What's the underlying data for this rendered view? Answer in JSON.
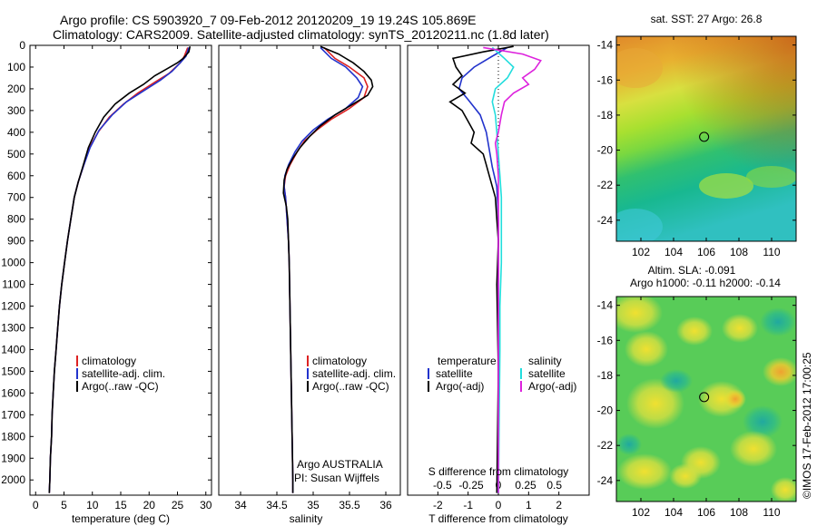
{
  "header": {
    "title_line1": "Argo profile: CS 5903920_7 09-Feb-2012 20120209_19 19.24S 105.869E",
    "title_line2": "Climatology: CARS2009. Satellite-adjusted climatology: synTS_20120211.nc (1.8d later)"
  },
  "depth_axis": {
    "ylim": [
      0,
      2070
    ],
    "ticks": [
      0,
      100,
      200,
      300,
      400,
      500,
      600,
      700,
      800,
      900,
      1000,
      1100,
      1200,
      1300,
      1400,
      1500,
      1600,
      1700,
      1800,
      1900,
      2000
    ]
  },
  "colors": {
    "climatology": "#dd2222",
    "satellite": "#2233cc",
    "argo": "#000000",
    "sal_satellite": "#22dddd",
    "sal_argo": "#dd22dd"
  },
  "chart_data": [
    {
      "type": "line",
      "name": "temperature-profile",
      "xlabel": "temperature (deg C)",
      "xlim": [
        -1,
        31
      ],
      "xticks": [
        0,
        5,
        10,
        15,
        20,
        25,
        30
      ],
      "legend": [
        "climatology",
        "satellite-adj. clim.",
        "Argo(..raw -QC)"
      ],
      "series": [
        {
          "name": "climatology",
          "points": [
            [
              26.8,
              10
            ],
            [
              26.2,
              50
            ],
            [
              25.5,
              80
            ],
            [
              23.5,
              130
            ],
            [
              21,
              170
            ],
            [
              18,
              220
            ],
            [
              15.5,
              270
            ],
            [
              13,
              330
            ],
            [
              11,
              400
            ],
            [
              9.5,
              470
            ],
            [
              8.5,
              550
            ],
            [
              7.5,
              630
            ],
            [
              6.8,
              700
            ],
            [
              6.2,
              800
            ],
            [
              5.6,
              900
            ],
            [
              5.1,
              1000
            ],
            [
              4.6,
              1100
            ],
            [
              4.2,
              1200
            ],
            [
              3.9,
              1300
            ],
            [
              3.6,
              1400
            ],
            [
              3.3,
              1500
            ],
            [
              3.1,
              1600
            ],
            [
              2.9,
              1700
            ],
            [
              2.8,
              1800
            ],
            [
              2.6,
              1900
            ],
            [
              2.5,
              2000
            ],
            [
              2.4,
              2060
            ]
          ]
        },
        {
          "name": "satellite-adj. clim.",
          "points": [
            [
              27,
              10
            ],
            [
              26.5,
              50
            ],
            [
              25.5,
              80
            ],
            [
              24,
              120
            ],
            [
              22,
              160
            ],
            [
              19,
              210
            ],
            [
              16,
              260
            ],
            [
              13.5,
              320
            ],
            [
              11.2,
              390
            ],
            [
              9.6,
              470
            ],
            [
              8.5,
              550
            ],
            [
              7.5,
              630
            ],
            [
              6.8,
              700
            ],
            [
              6.2,
              800
            ],
            [
              5.6,
              900
            ],
            [
              5.1,
              1000
            ],
            [
              4.6,
              1100
            ],
            [
              4.2,
              1200
            ],
            [
              3.9,
              1300
            ],
            [
              3.6,
              1400
            ],
            [
              3.3,
              1500
            ],
            [
              3.1,
              1600
            ],
            [
              2.9,
              1700
            ],
            [
              2.8,
              1800
            ],
            [
              2.6,
              1900
            ],
            [
              2.5,
              2000
            ],
            [
              2.4,
              2060
            ]
          ]
        },
        {
          "name": "Argo(..raw -QC)",
          "points": [
            [
              27.2,
              5
            ],
            [
              27,
              30
            ],
            [
              26,
              60
            ],
            [
              25,
              80
            ],
            [
              23,
              110
            ],
            [
              21,
              140
            ],
            [
              19,
              180
            ],
            [
              16.5,
              220
            ],
            [
              14,
              270
            ],
            [
              12,
              330
            ],
            [
              10.5,
              400
            ],
            [
              9.3,
              470
            ],
            [
              8.4,
              550
            ],
            [
              7.5,
              630
            ],
            [
              6.8,
              700
            ],
            [
              6.2,
              800
            ],
            [
              5.6,
              900
            ],
            [
              5.1,
              1000
            ],
            [
              4.6,
              1100
            ],
            [
              4.2,
              1200
            ],
            [
              3.9,
              1300
            ],
            [
              3.6,
              1400
            ],
            [
              3.3,
              1500
            ],
            [
              3.1,
              1600
            ],
            [
              2.9,
              1700
            ],
            [
              2.8,
              1800
            ],
            [
              2.6,
              1900
            ],
            [
              2.5,
              2000
            ],
            [
              2.4,
              2060
            ]
          ]
        }
      ]
    },
    {
      "type": "line",
      "name": "salinity-profile",
      "xlabel": "salinity",
      "xlim": [
        33.7,
        36.2
      ],
      "xticks": [
        34,
        34.5,
        35,
        35.5,
        36
      ],
      "legend": [
        "climatology",
        "satellite-adj. clim.",
        "Argo(..raw -QC)"
      ],
      "annotations": [
        "Argo AUSTRALIA",
        "PI: Susan Wijffels"
      ],
      "series": [
        {
          "name": "climatology",
          "points": [
            [
              35.15,
              10
            ],
            [
              35.3,
              60
            ],
            [
              35.5,
              100
            ],
            [
              35.7,
              150
            ],
            [
              35.75,
              190
            ],
            [
              35.7,
              240
            ],
            [
              35.5,
              290
            ],
            [
              35.25,
              340
            ],
            [
              35.05,
              390
            ],
            [
              34.88,
              440
            ],
            [
              34.78,
              490
            ],
            [
              34.68,
              550
            ],
            [
              34.62,
              600
            ],
            [
              34.6,
              650
            ],
            [
              34.62,
              700
            ],
            [
              34.64,
              800
            ],
            [
              34.66,
              900
            ],
            [
              34.67,
              1000
            ],
            [
              34.68,
              1200
            ],
            [
              34.69,
              1400
            ],
            [
              34.7,
              1600
            ],
            [
              34.71,
              1800
            ],
            [
              34.72,
              2000
            ],
            [
              34.72,
              2060
            ]
          ]
        },
        {
          "name": "satellite-adj. clim.",
          "points": [
            [
              35.1,
              10
            ],
            [
              35.25,
              60
            ],
            [
              35.45,
              100
            ],
            [
              35.6,
              150
            ],
            [
              35.68,
              190
            ],
            [
              35.62,
              240
            ],
            [
              35.45,
              290
            ],
            [
              35.2,
              340
            ],
            [
              35.0,
              390
            ],
            [
              34.85,
              440
            ],
            [
              34.75,
              490
            ],
            [
              34.66,
              550
            ],
            [
              34.61,
              600
            ],
            [
              34.6,
              650
            ],
            [
              34.62,
              700
            ],
            [
              34.64,
              800
            ],
            [
              34.66,
              900
            ],
            [
              34.67,
              1000
            ],
            [
              34.68,
              1200
            ],
            [
              34.69,
              1400
            ],
            [
              34.7,
              1600
            ],
            [
              34.71,
              1800
            ],
            [
              34.72,
              2000
            ],
            [
              34.72,
              2060
            ]
          ]
        },
        {
          "name": "Argo(..raw -QC)",
          "points": [
            [
              35.1,
              5
            ],
            [
              35.35,
              40
            ],
            [
              35.55,
              80
            ],
            [
              35.7,
              120
            ],
            [
              35.8,
              160
            ],
            [
              35.82,
              190
            ],
            [
              35.75,
              230
            ],
            [
              35.55,
              270
            ],
            [
              35.3,
              320
            ],
            [
              35.1,
              370
            ],
            [
              34.95,
              420
            ],
            [
              34.82,
              470
            ],
            [
              34.72,
              520
            ],
            [
              34.64,
              570
            ],
            [
              34.6,
              620
            ],
            [
              34.59,
              680
            ],
            [
              34.63,
              740
            ],
            [
              34.65,
              800
            ],
            [
              34.66,
              900
            ],
            [
              34.67,
              1000
            ],
            [
              34.68,
              1200
            ],
            [
              34.69,
              1400
            ],
            [
              34.7,
              1600
            ],
            [
              34.71,
              1800
            ],
            [
              34.72,
              2000
            ],
            [
              34.72,
              2060
            ]
          ]
        }
      ]
    },
    {
      "type": "line",
      "name": "difference-profile",
      "xlabel": "T difference from climatology",
      "top_label": "S difference from climatology",
      "xlim": [
        -3,
        3
      ],
      "xticks": [
        -2,
        -1,
        0,
        1,
        2
      ],
      "s_ticks": [
        [
          "-0.5",
          -1.85
        ],
        [
          "-0.25",
          -0.9
        ],
        [
          "0",
          0
        ],
        [
          "0.25",
          0.9
        ],
        [
          "0.5",
          1.85
        ]
      ],
      "legend_headers": [
        "temperature",
        "salinity"
      ],
      "legend_t": [
        "satellite",
        "Argo(-adj)"
      ],
      "legend_s": [
        "satellite",
        "Argo(-adj)"
      ],
      "series": [
        {
          "name": "temperature satellite",
          "points": [
            [
              0.3,
              10
            ],
            [
              -0.2,
              50
            ],
            [
              -0.8,
              100
            ],
            [
              -1.2,
              150
            ],
            [
              -1.3,
              200
            ],
            [
              -1.0,
              250
            ],
            [
              -0.6,
              320
            ],
            [
              -0.4,
              400
            ],
            [
              -0.3,
              480
            ],
            [
              -0.2,
              560
            ],
            [
              -0.05,
              650
            ],
            [
              0,
              800
            ],
            [
              0,
              2060
            ]
          ]
        },
        {
          "name": "temperature Argo(-adj)",
          "points": [
            [
              0.5,
              5
            ],
            [
              -0.5,
              30
            ],
            [
              -1.5,
              60
            ],
            [
              -1.4,
              100
            ],
            [
              -1.2,
              140
            ],
            [
              -1.5,
              180
            ],
            [
              -1.1,
              220
            ],
            [
              -1.6,
              260
            ],
            [
              -1.2,
              300
            ],
            [
              -1.0,
              350
            ],
            [
              -0.8,
              400
            ],
            [
              -0.9,
              450
            ],
            [
              -0.5,
              500
            ],
            [
              -0.4,
              550
            ],
            [
              -0.3,
              600
            ],
            [
              -0.2,
              650
            ],
            [
              -0.1,
              700
            ],
            [
              -0.05,
              800
            ],
            [
              0,
              900
            ],
            [
              -0.05,
              1100
            ],
            [
              0,
              1500
            ],
            [
              -0.05,
              2060
            ]
          ]
        },
        {
          "name": "salinity satellite",
          "points": [
            [
              -0.2,
              10
            ],
            [
              0.2,
              60
            ],
            [
              0.5,
              100
            ],
            [
              0.3,
              150
            ],
            [
              -0.1,
              200
            ],
            [
              -0.2,
              260
            ],
            [
              -0.1,
              320
            ],
            [
              -0.05,
              400
            ],
            [
              0,
              500
            ],
            [
              0.05,
              600
            ],
            [
              0.1,
              700
            ],
            [
              0.1,
              850
            ],
            [
              0.1,
              1000
            ],
            [
              0.05,
              1200
            ],
            [
              0.05,
              1400
            ],
            [
              0,
              2060
            ]
          ]
        },
        {
          "name": "salinity Argo(-adj)",
          "points": [
            [
              -0.5,
              10
            ],
            [
              0.8,
              40
            ],
            [
              1.4,
              70
            ],
            [
              1.2,
              110
            ],
            [
              0.8,
              150
            ],
            [
              1.0,
              180
            ],
            [
              0.5,
              220
            ],
            [
              0.2,
              260
            ],
            [
              0.1,
              320
            ],
            [
              0,
              400
            ],
            [
              -0.1,
              450
            ],
            [
              -0.05,
              500
            ],
            [
              0,
              600
            ],
            [
              0,
              2060
            ]
          ]
        }
      ]
    },
    {
      "type": "heatmap",
      "name": "sst-map",
      "title": "sat. SST: 27 Argo: 26.8",
      "xlim": [
        100.5,
        111.5
      ],
      "ylim": [
        -25.2,
        -13.5
      ],
      "xticks": [
        102,
        104,
        106,
        108,
        110
      ],
      "yticks": [
        -14,
        -16,
        -18,
        -20,
        -22,
        -24
      ],
      "argo_position": [
        105.869,
        -19.24
      ]
    },
    {
      "type": "heatmap",
      "name": "sla-map",
      "title": "Altim. SLA: -0.091",
      "subtitle": "Argo h1000: -0.11 h2000: -0.14",
      "xlim": [
        100.5,
        111.5
      ],
      "ylim": [
        -25.2,
        -13.5
      ],
      "xticks": [
        102,
        104,
        106,
        108,
        110
      ],
      "yticks": [
        -14,
        -16,
        -18,
        -20,
        -22,
        -24
      ],
      "argo_position": [
        105.869,
        -19.24
      ]
    }
  ],
  "footer": {
    "stamp": "©IMOS 17-Feb-2012 17:00:25"
  }
}
